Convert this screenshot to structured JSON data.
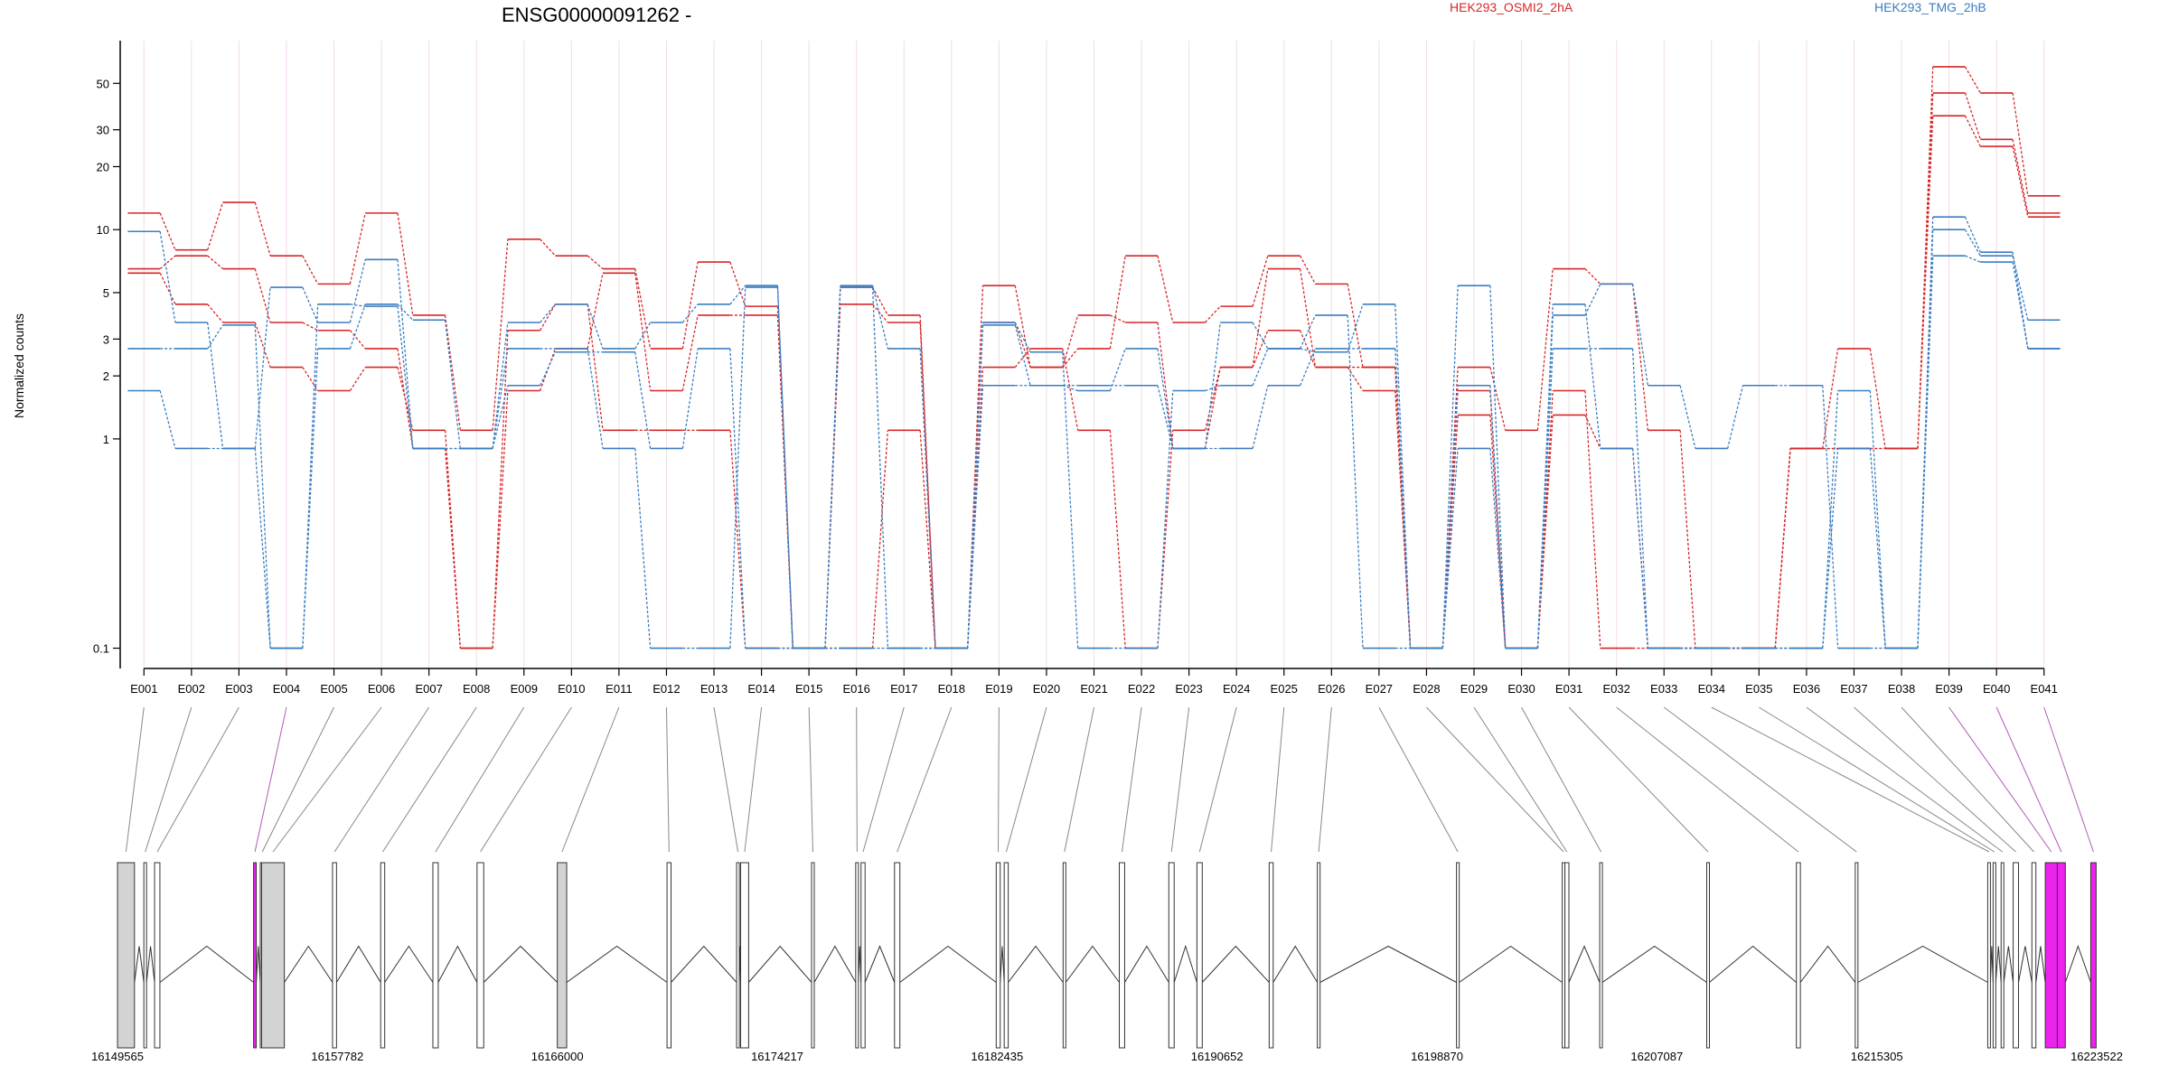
{
  "chart_data": {
    "type": "line",
    "title": "ENSG00000091262 -",
    "ylabel": "Normalized counts",
    "yscale": "log",
    "yticks": [
      0.1,
      1,
      2,
      3,
      5,
      10,
      20,
      30,
      50
    ],
    "ylim": [
      0.08,
      80
    ],
    "categories": [
      "E001",
      "E002",
      "E003",
      "E004",
      "E005",
      "E006",
      "E007",
      "E008",
      "E009",
      "E010",
      "E011",
      "E012",
      "E013",
      "E014",
      "E015",
      "E016",
      "E017",
      "E018",
      "E019",
      "E020",
      "E021",
      "E022",
      "E023",
      "E024",
      "E025",
      "E026",
      "E027",
      "E028",
      "E029",
      "E030",
      "E031",
      "E032",
      "E033",
      "E034",
      "E035",
      "E036",
      "E037",
      "E038",
      "E039",
      "E040",
      "E041"
    ],
    "legend": [
      {
        "name": "HEK293_OSMI2_2hA",
        "color": "#d62728"
      },
      {
        "name": "HEK293_TMG_2hB",
        "color": "#3a7dc1"
      }
    ],
    "series": [
      {
        "group": "HEK293_OSMI2_2hA",
        "color": "#d62728",
        "values": [
          12,
          8,
          13.5,
          7.5,
          5.5,
          12,
          3.9,
          1.1,
          9,
          7.5,
          6.5,
          2.7,
          7,
          4.3,
          0.1,
          5.3,
          3.9,
          0.1,
          5.4,
          2.2,
          2.7,
          7.5,
          3.6,
          4.3,
          7.5,
          5.5,
          2.2,
          0.1,
          2.2,
          1.1,
          6.5,
          5.5,
          1.1,
          0.1,
          0.1,
          0.9,
          2.7,
          0.9,
          60,
          45,
          14.5
        ]
      },
      {
        "group": "HEK293_OSMI2_2hA",
        "color": "#d62728",
        "values": [
          6.5,
          7.5,
          6.5,
          3.6,
          3.3,
          2.7,
          0.9,
          0.1,
          3.3,
          4.4,
          1.1,
          1.1,
          1.1,
          0.1,
          0.1,
          0.1,
          1.1,
          0.1,
          2.2,
          2.7,
          1.1,
          0.1,
          1.1,
          2.2,
          6.5,
          2.2,
          1.7,
          0.1,
          1.3,
          0.1,
          1.7,
          0.1,
          0.1,
          0.1,
          0.1,
          0.9,
          0.9,
          0.9,
          45,
          27,
          12
        ]
      },
      {
        "group": "HEK293_OSMI2_2hA",
        "color": "#d62728",
        "values": [
          6.2,
          4.4,
          3.6,
          2.2,
          1.7,
          2.2,
          1.1,
          0.1,
          1.7,
          2.7,
          6.2,
          1.7,
          3.9,
          3.9,
          0.1,
          4.4,
          3.6,
          0.1,
          3.6,
          2.2,
          3.9,
          3.6,
          0.9,
          2.2,
          3.3,
          2.2,
          2.2,
          0.1,
          1.7,
          0.1,
          1.3,
          0.9,
          0.1,
          0.1,
          0.1,
          0.9,
          0.9,
          0.9,
          35,
          25,
          11.5
        ]
      },
      {
        "group": "HEK293_TMG_2hB",
        "color": "#3a7dc1",
        "values": [
          9.8,
          3.6,
          0.9,
          5.3,
          3.6,
          7.2,
          0.9,
          0.9,
          3.6,
          4.4,
          2.7,
          3.6,
          4.4,
          5.4,
          0.1,
          5.4,
          2.7,
          0.1,
          3.5,
          1.8,
          1.8,
          1.8,
          0.9,
          3.6,
          2.7,
          3.9,
          0.1,
          0.1,
          5.4,
          0.1,
          3.9,
          5.5,
          1.8,
          0.9,
          1.8,
          1.8,
          0.1,
          0.1,
          11.5,
          7.8,
          2.7
        ]
      },
      {
        "group": "HEK293_TMG_2hB",
        "color": "#3a7dc1",
        "values": [
          2.7,
          2.7,
          3.5,
          0.1,
          2.7,
          4.4,
          3.7,
          0.9,
          2.7,
          2.7,
          0.9,
          0.1,
          0.1,
          5.3,
          0.1,
          5.3,
          0.1,
          0.1,
          1.8,
          1.8,
          1.7,
          2.7,
          0.9,
          0.9,
          1.8,
          2.7,
          2.7,
          0.1,
          1.8,
          0.1,
          4.4,
          0.9,
          0.1,
          0.1,
          0.1,
          0.1,
          1.7,
          0.1,
          10,
          7.5,
          3.7
        ]
      },
      {
        "group": "HEK293_TMG_2hB",
        "color": "#3a7dc1",
        "values": [
          1.7,
          0.9,
          0.9,
          0.1,
          4.4,
          4.3,
          0.9,
          0.9,
          1.8,
          2.6,
          2.6,
          0.9,
          2.7,
          0.1,
          0.1,
          0.1,
          0.1,
          0.1,
          3.6,
          2.6,
          0.1,
          0.1,
          1.7,
          1.8,
          2.7,
          2.6,
          4.4,
          0.1,
          0.9,
          0.1,
          2.7,
          2.7,
          0.1,
          0.1,
          0.1,
          0.1,
          0.9,
          0.1,
          7.5,
          7,
          2.7
        ]
      }
    ],
    "gene_model": {
      "genomic_range": [
        16149565,
        16223522
      ],
      "coordinate_ticks": [
        16149565,
        16157782,
        16166000,
        16174217,
        16182435,
        16190652,
        16198870,
        16207087,
        16215305,
        16223522
      ],
      "highlight_color": "#ee22ee",
      "highlighted_exons": [
        "E004",
        "E039",
        "E040",
        "E041"
      ],
      "exon_starts": [
        16149565,
        16150550,
        16150950,
        16154650,
        16154900,
        16154950,
        16157600,
        16159400,
        16161350,
        16163000,
        16166000,
        16170100,
        16172700,
        16172850,
        16175500,
        16177150,
        16177350,
        16178600,
        16182400,
        16182700,
        16184900,
        16187000,
        16188850,
        16189900,
        16192600,
        16194400,
        16199600,
        16203550,
        16203650,
        16204950,
        16208950,
        16212300,
        16214500,
        16219450,
        16219650,
        16219950,
        16220400,
        16221100,
        16221600,
        16222050,
        16223300
      ],
      "exon_ends": [
        16150200,
        16150650,
        16151150,
        16154750,
        16155050,
        16155800,
        16157750,
        16159550,
        16161550,
        16163250,
        16166350,
        16170250,
        16172800,
        16173150,
        16175600,
        16177250,
        16177500,
        16178800,
        16182550,
        16182850,
        16185000,
        16187200,
        16189050,
        16190100,
        16192750,
        16194500,
        16199700,
        16203650,
        16203800,
        16205050,
        16209050,
        16212450,
        16214600,
        16219550,
        16219750,
        16220050,
        16220600,
        16221250,
        16222050,
        16222350,
        16223500
      ]
    }
  }
}
